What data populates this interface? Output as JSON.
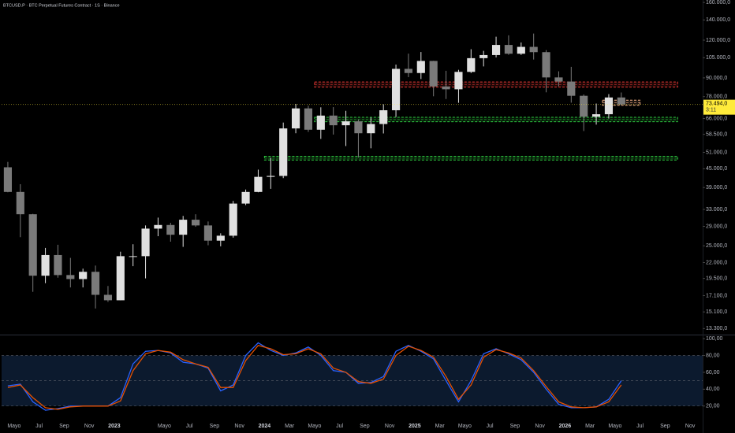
{
  "chart_data": [
    {
      "type": "candlestick",
      "title": "BTCUSD.P · BTC Perpetual Futures Contract · 1S · Binance",
      "x": [
        "2022-04",
        "2022-05",
        "2022-06",
        "2022-07",
        "2022-08",
        "2022-09",
        "2022-10",
        "2022-11",
        "2022-12",
        "2023-01",
        "2023-02",
        "2023-03",
        "2023-04",
        "2023-05",
        "2023-06",
        "2023-07",
        "2023-08",
        "2023-09",
        "2023-10",
        "2023-11",
        "2023-12",
        "2024-01",
        "2024-02",
        "2024-03",
        "2024-04",
        "2024-05",
        "2024-06",
        "2024-07",
        "2024-08",
        "2024-09",
        "2024-10",
        "2024-11",
        "2024-12",
        "2025-01",
        "2025-02",
        "2025-03",
        "2025-04",
        "2025-05",
        "2025-06",
        "2025-07",
        "2025-08",
        "2025-09",
        "2025-10",
        "2025-11",
        "2025-12",
        "2026-01",
        "2026-02",
        "2026-03",
        "2026-04",
        "2026-05"
      ],
      "open": [
        45500,
        37700,
        31800,
        19900,
        23300,
        20000,
        19400,
        20500,
        17200,
        16500,
        23100,
        23100,
        28500,
        29300,
        27200,
        30500,
        29200,
        26000,
        27000,
        34500,
        37700,
        42300,
        42600,
        61200,
        71300,
        60600,
        67500,
        62700,
        64600,
        59000,
        63300,
        70300,
        96400,
        93400,
        102400,
        84300,
        82500,
        94200,
        104600,
        107100,
        115700,
        108200,
        114000,
        109500,
        90300,
        87500,
        78500,
        66900,
        68200,
        77500
      ],
      "high": [
        47400,
        40000,
        31900,
        24600,
        25200,
        22800,
        21000,
        21500,
        18400,
        23900,
        25300,
        29200,
        31000,
        29800,
        31400,
        31800,
        30100,
        27500,
        35200,
        38400,
        44700,
        48900,
        64000,
        73800,
        72800,
        71900,
        72000,
        70000,
        65600,
        66500,
        73600,
        99600,
        108300,
        109600,
        102500,
        95000,
        95700,
        112000,
        110600,
        123200,
        124500,
        117900,
        126200,
        111200,
        94600,
        97900,
        79300,
        74000,
        79500,
        80500
      ],
      "low": [
        37600,
        26700,
        17600,
        18800,
        19600,
        18200,
        18200,
        15500,
        16300,
        16500,
        21400,
        19500,
        26900,
        25800,
        24800,
        28900,
        25100,
        24900,
        26600,
        34100,
        37600,
        38600,
        41900,
        59000,
        59600,
        56500,
        58400,
        53500,
        49000,
        52600,
        58900,
        66800,
        90500,
        89200,
        78200,
        76600,
        74400,
        93400,
        98200,
        105200,
        107300,
        107200,
        103500,
        80600,
        84400,
        74500,
        60000,
        63000,
        66000,
        73000
      ],
      "close": [
        37700,
        31800,
        19900,
        23300,
        20000,
        19400,
        20500,
        17200,
        16500,
        23100,
        23100,
        28500,
        29300,
        27200,
        30500,
        29200,
        26000,
        27000,
        34500,
        37700,
        42300,
        42600,
        61200,
        71300,
        60600,
        67500,
        62700,
        64600,
        59000,
        63300,
        70300,
        96400,
        93400,
        102400,
        84300,
        82500,
        94200,
        104600,
        107100,
        115700,
        108200,
        114000,
        109500,
        90300,
        87500,
        78500,
        66900,
        68200,
        77500,
        73494
      ],
      "up_color": "#e0e0e0",
      "down_color": "#7a7a7a",
      "log_scale": true,
      "xlim": [
        "2022-04",
        "2026-12"
      ],
      "ylim": [
        12700,
        163000
      ],
      "yticks": [
        {
          "value": 160000,
          "label": "160.000,0"
        },
        {
          "value": 140000,
          "label": "140.000,0"
        },
        {
          "value": 120000,
          "label": "120.000,0"
        },
        {
          "value": 105000,
          "label": "105.000,0"
        },
        {
          "value": 90000,
          "label": "90.000,0"
        },
        {
          "value": 78000,
          "label": "78.000,0"
        },
        {
          "value": 66000,
          "label": "66.000,0"
        },
        {
          "value": 58500,
          "label": "58.500,0"
        },
        {
          "value": 51000,
          "label": "51.000,0"
        },
        {
          "value": 45000,
          "label": "45.000,0"
        },
        {
          "value": 39000,
          "label": "39.000,0"
        },
        {
          "value": 33000,
          "label": "33.000,0"
        },
        {
          "value": 29000,
          "label": "29.000,0"
        },
        {
          "value": 25000,
          "label": "25.000,0"
        },
        {
          "value": 22000,
          "label": "22.000,0"
        },
        {
          "value": 19500,
          "label": "19.500,0"
        },
        {
          "value": 17100,
          "label": "17.100,0"
        },
        {
          "value": 15100,
          "label": "15.100,0"
        },
        {
          "value": 13300,
          "label": "13.300,0"
        }
      ],
      "zones": [
        {
          "from": "2024-05",
          "to": "2026-09",
          "low": 83900,
          "high": 87200,
          "color": "#e53935"
        },
        {
          "from": "2024-05",
          "to": "2026-09",
          "low": 64400,
          "high": 66600,
          "color": "#2ecc40"
        },
        {
          "from": "2024-01",
          "to": "2026-09",
          "low": 48100,
          "high": 49500,
          "color": "#2ecc40"
        },
        {
          "from": "2026-04",
          "to": "2026-06",
          "low": 73000,
          "high": 75900,
          "color": "#f5b38a"
        }
      ],
      "last_price": {
        "value": 73494,
        "label": "73.494,0"
      },
      "countdown": "3:11"
    },
    {
      "type": "line",
      "x": [
        "2022-04",
        "2022-05",
        "2022-06",
        "2022-07",
        "2022-08",
        "2022-09",
        "2022-10",
        "2022-11",
        "2022-12",
        "2023-01",
        "2023-02",
        "2023-03",
        "2023-04",
        "2023-05",
        "2023-06",
        "2023-07",
        "2023-08",
        "2023-09",
        "2023-10",
        "2023-11",
        "2023-12",
        "2024-01",
        "2024-02",
        "2024-03",
        "2024-04",
        "2024-05",
        "2024-06",
        "2024-07",
        "2024-08",
        "2024-09",
        "2024-10",
        "2024-11",
        "2024-12",
        "2025-01",
        "2025-02",
        "2025-03",
        "2025-04",
        "2025-05",
        "2025-06",
        "2025-07",
        "2025-08",
        "2025-09",
        "2025-10",
        "2025-11",
        "2025-12",
        "2026-01",
        "2026-02",
        "2026-03",
        "2026-04",
        "2026-05"
      ],
      "series": [
        {
          "color": "#2962ff",
          "values": [
            44,
            46,
            25,
            15,
            17,
            20,
            20,
            20,
            20,
            30,
            70,
            85,
            86,
            83,
            72,
            70,
            65,
            38,
            45,
            80,
            95,
            86,
            80,
            83,
            90,
            80,
            62,
            60,
            47,
            48,
            55,
            85,
            92,
            85,
            76,
            50,
            25,
            50,
            82,
            88,
            82,
            75,
            60,
            40,
            22,
            18,
            18,
            19,
            28,
            50
          ]
        },
        {
          "color": "#e65100",
          "values": [
            42,
            45,
            30,
            18,
            16,
            19,
            20,
            20,
            20,
            26,
            62,
            82,
            86,
            84,
            75,
            70,
            66,
            42,
            42,
            74,
            92,
            88,
            81,
            82,
            88,
            82,
            65,
            60,
            49,
            47,
            52,
            80,
            91,
            86,
            78,
            55,
            28,
            45,
            78,
            87,
            83,
            77,
            62,
            43,
            25,
            19,
            18,
            19,
            25,
            45
          ]
        }
      ],
      "xlim": [
        "2022-04",
        "2026-12"
      ],
      "ylim": [
        -12,
        102
      ],
      "yticks": [
        {
          "value": 100,
          "label": "100,00"
        },
        {
          "value": 80,
          "label": "80,00"
        },
        {
          "value": 60,
          "label": "60,00"
        },
        {
          "value": 40,
          "label": "40,00"
        },
        {
          "value": 20,
          "label": "20,00"
        }
      ],
      "band": [
        20,
        80
      ],
      "band_lines": [
        80,
        50,
        20
      ],
      "band_color": "#0c1a2e",
      "xticks": [
        {
          "value": "2022-05",
          "label": "Mayo"
        },
        {
          "value": "2022-07",
          "label": "Jul"
        },
        {
          "value": "2022-09",
          "label": "Sep"
        },
        {
          "value": "2022-11",
          "label": "Nov"
        },
        {
          "value": "2023-01",
          "label": "2023"
        },
        {
          "value": "2023-05",
          "label": "Mayo"
        },
        {
          "value": "2023-07",
          "label": "Jul"
        },
        {
          "value": "2023-09",
          "label": "Sep"
        },
        {
          "value": "2023-11",
          "label": "Nov"
        },
        {
          "value": "2024-01",
          "label": "2024"
        },
        {
          "value": "2024-03",
          "label": "Mar"
        },
        {
          "value": "2024-05",
          "label": "Mayo"
        },
        {
          "value": "2024-07",
          "label": "Jul"
        },
        {
          "value": "2024-09",
          "label": "Sep"
        },
        {
          "value": "2024-11",
          "label": "Nov"
        },
        {
          "value": "2025-01",
          "label": "2025"
        },
        {
          "value": "2025-03",
          "label": "Mar"
        },
        {
          "value": "2025-05",
          "label": "Mayo"
        },
        {
          "value": "2025-07",
          "label": "Jul"
        },
        {
          "value": "2025-09",
          "label": "Sep"
        },
        {
          "value": "2025-11",
          "label": "Nov"
        },
        {
          "value": "2026-01",
          "label": "2026"
        },
        {
          "value": "2026-03",
          "label": "Mar"
        },
        {
          "value": "2026-05",
          "label": "Mayo"
        },
        {
          "value": "2026-07",
          "label": "Jul"
        },
        {
          "value": "2026-09",
          "label": "Sep"
        },
        {
          "value": "2026-11",
          "label": "Nov"
        }
      ]
    }
  ]
}
